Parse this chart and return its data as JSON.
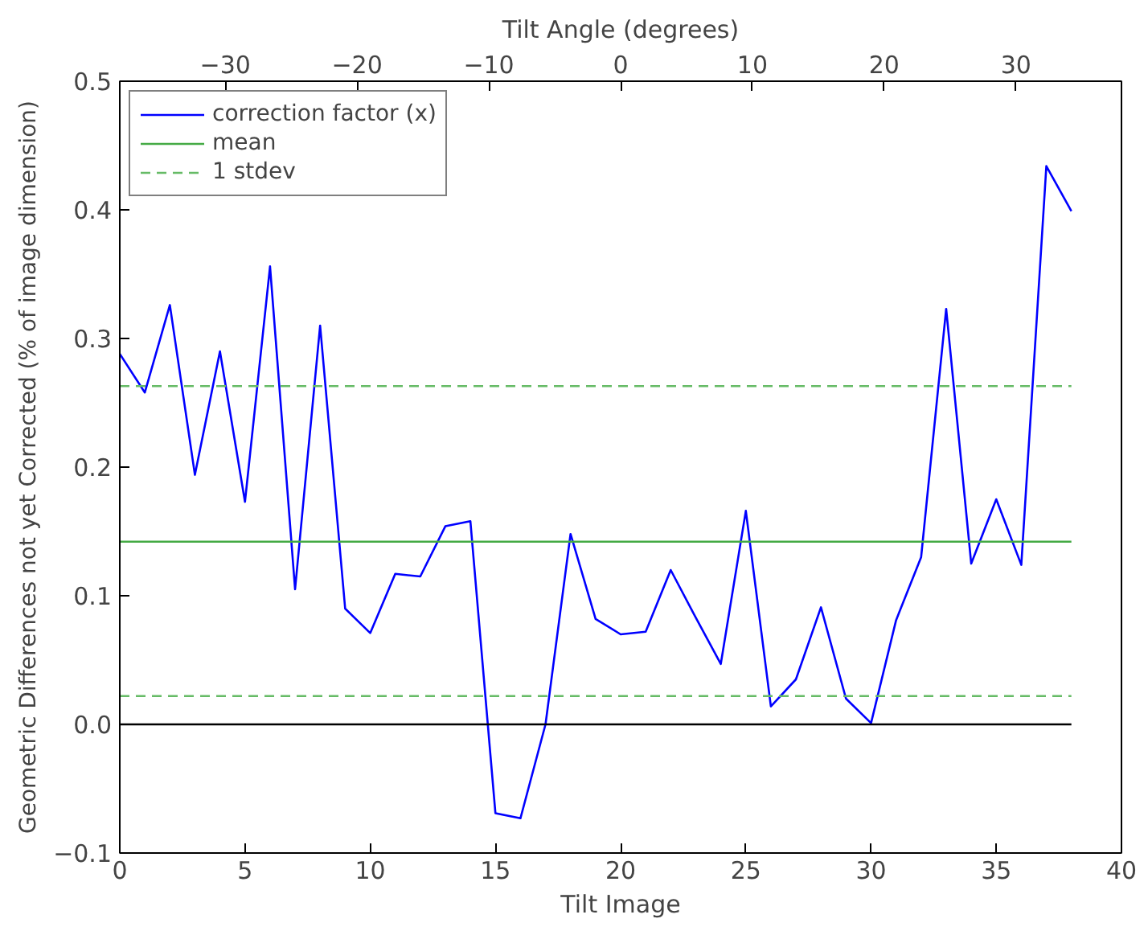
{
  "chart_data": {
    "type": "line",
    "xlabel": "Tilt Image",
    "ylabel": "Geometric Differences not yet Corrected (% of image dimension)",
    "x2label": "Tilt Angle (degrees)",
    "x": [
      0,
      1,
      2,
      3,
      4,
      5,
      6,
      7,
      8,
      9,
      10,
      11,
      12,
      13,
      14,
      15,
      16,
      17,
      18,
      19,
      20,
      21,
      22,
      23,
      24,
      25,
      26,
      27,
      28,
      29,
      30,
      31,
      32,
      33,
      34,
      35,
      36,
      37,
      38
    ],
    "series": [
      {
        "name": "correction factor (x)",
        "color": "#0000ff",
        "values": [
          0.288,
          0.258,
          0.326,
          0.194,
          0.29,
          0.173,
          0.356,
          0.105,
          0.31,
          0.09,
          0.071,
          0.117,
          0.115,
          0.154,
          0.158,
          -0.069,
          -0.073,
          0.0,
          0.148,
          0.082,
          0.07,
          0.072,
          0.12,
          0.083,
          0.047,
          0.166,
          0.014,
          0.035,
          0.091,
          0.02,
          0.001,
          0.081,
          0.13,
          0.323,
          0.125,
          0.175,
          0.124,
          0.434,
          0.399
        ]
      }
    ],
    "ref_lines": [
      {
        "axis": "y",
        "value": 0.142,
        "label": "mean",
        "color": "#44aa44",
        "line_style": "solid"
      },
      {
        "axis": "y",
        "value": 0.263,
        "label": "1 stdev",
        "color": "#66bb66",
        "line_style": "dashed"
      },
      {
        "axis": "y",
        "value": 0.022,
        "label": null,
        "color": "#66bb66",
        "line_style": "dashed"
      },
      {
        "axis": "y",
        "value": 0,
        "label": null,
        "color": "#000000",
        "line_style": "solid"
      }
    ],
    "xlim": [
      0,
      40
    ],
    "xticks": [
      0,
      5,
      10,
      15,
      20,
      25,
      30,
      35,
      40
    ],
    "ylim": [
      -0.1,
      0.5
    ],
    "yticks": [
      {
        "value": -0.1,
        "label": "−0.1"
      },
      {
        "value": 0,
        "label": "0.0"
      },
      {
        "value": 0.1,
        "label": "0.1"
      },
      {
        "value": 0.2,
        "label": "0.2"
      },
      {
        "value": 0.3,
        "label": "0.3"
      },
      {
        "value": 0.4,
        "label": "0.4"
      },
      {
        "value": 0.5,
        "label": "0.5"
      }
    ],
    "x2lim": [
      -38,
      38
    ],
    "x2ticks": [
      {
        "value": -30,
        "label": "−30"
      },
      {
        "value": -20,
        "label": "−20"
      },
      {
        "value": -10,
        "label": "−10"
      },
      0,
      10,
      20,
      30
    ],
    "grid": false,
    "legend": "top left",
    "marker": "none",
    "line_style": "solid"
  }
}
